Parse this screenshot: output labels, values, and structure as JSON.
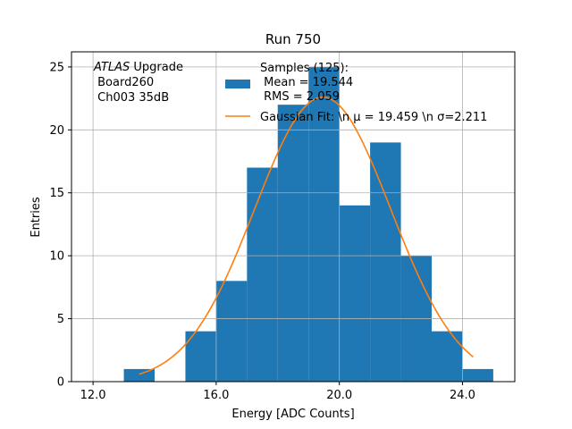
{
  "chart_data": {
    "type": "bar",
    "title": "Run 750",
    "xlabel": "Energy [ADC Counts]",
    "ylabel": "Entries",
    "xlim": [
      11.3,
      25.7
    ],
    "ylim": [
      0,
      26.2
    ],
    "xticks": [
      12,
      16,
      20,
      24
    ],
    "xtick_labels": [
      "12.0",
      "16.0",
      "20.0",
      "24.0"
    ],
    "yticks": [
      0,
      5,
      10,
      15,
      20,
      25
    ],
    "ytick_labels": [
      "0",
      "5",
      "10",
      "15",
      "20",
      "25"
    ],
    "grid": true,
    "bin_edges": [
      13,
      14,
      15,
      16,
      17,
      18,
      19,
      20,
      21,
      22,
      23,
      24,
      25
    ],
    "counts": [
      1,
      0,
      4,
      8,
      17,
      22,
      25,
      14,
      19,
      10,
      4,
      1
    ],
    "bar_color": "#1f77b4",
    "fit_color": "#ff7f0e",
    "fit": {
      "amplitude": 22.6,
      "mu": 19.459,
      "sigma": 2.211,
      "x_range": [
        13.5,
        24.35
      ]
    },
    "annotation": {
      "line1_italic": "ATLAS",
      "line1_rest": " Upgrade",
      "line2": " Board260",
      "line3": " Ch003 35dB"
    },
    "legend": {
      "placement": "top-center",
      "samples_line1": "Samples (125):",
      "samples_line2": " Mean = 19.544",
      "samples_line3": " RMS = 2.059",
      "fit_label": "Gaussian Fit: \\n μ = 19.459 \\n σ=2.211"
    }
  }
}
